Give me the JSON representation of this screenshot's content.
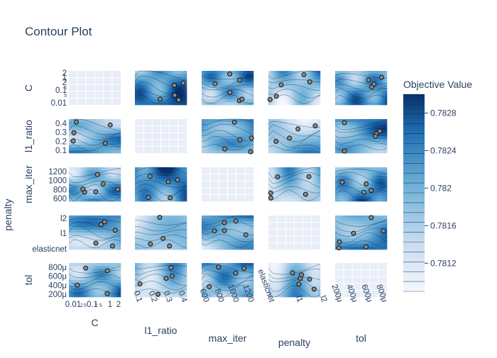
{
  "chart_data": {
    "type": "contour",
    "title": "Contour Plot",
    "params": [
      "C",
      "l1_ratio",
      "max_iter",
      "penalty",
      "tol"
    ],
    "axis_ticks": {
      "C": {
        "y": [
          "0.01",
          "5",
          "0.1",
          "5",
          "2",
          "5",
          "1",
          "2"
        ],
        "x": [
          "0.01",
          "2",
          "5",
          "0.1",
          "2",
          "5",
          "1",
          "2"
        ]
      },
      "l1_ratio": {
        "y": [
          "0.1",
          "0.2",
          "0.3",
          "0.4"
        ],
        "x": [
          "0.1",
          "0.2",
          "0.3",
          "0.4"
        ]
      },
      "max_iter": {
        "y": [
          "600",
          "800",
          "1000",
          "1200"
        ],
        "x": [
          "600",
          "800",
          "1000",
          "1200"
        ]
      },
      "penalty": {
        "y": [
          "elasticnet",
          "l1",
          "l2"
        ],
        "x": [
          "elasticnet",
          "l1",
          "l2"
        ]
      },
      "tol": {
        "y": [
          "200μ",
          "400μ",
          "600μ",
          "800μ"
        ],
        "x": [
          "200μ",
          "400μ",
          "600μ",
          "800μ"
        ]
      }
    },
    "colorbar": {
      "title": "Objective Value",
      "ticks": [
        "0.7812",
        "0.7816",
        "0.782",
        "0.7824",
        "0.7828"
      ],
      "range": [
        0.7809,
        0.783
      ]
    },
    "colors": {
      "low": "#f0f4fb",
      "high": "#0a3f7e",
      "empty_panel": "#e8edf7",
      "title": "#2a3f5f",
      "marker": "#8a8a8a"
    }
  }
}
